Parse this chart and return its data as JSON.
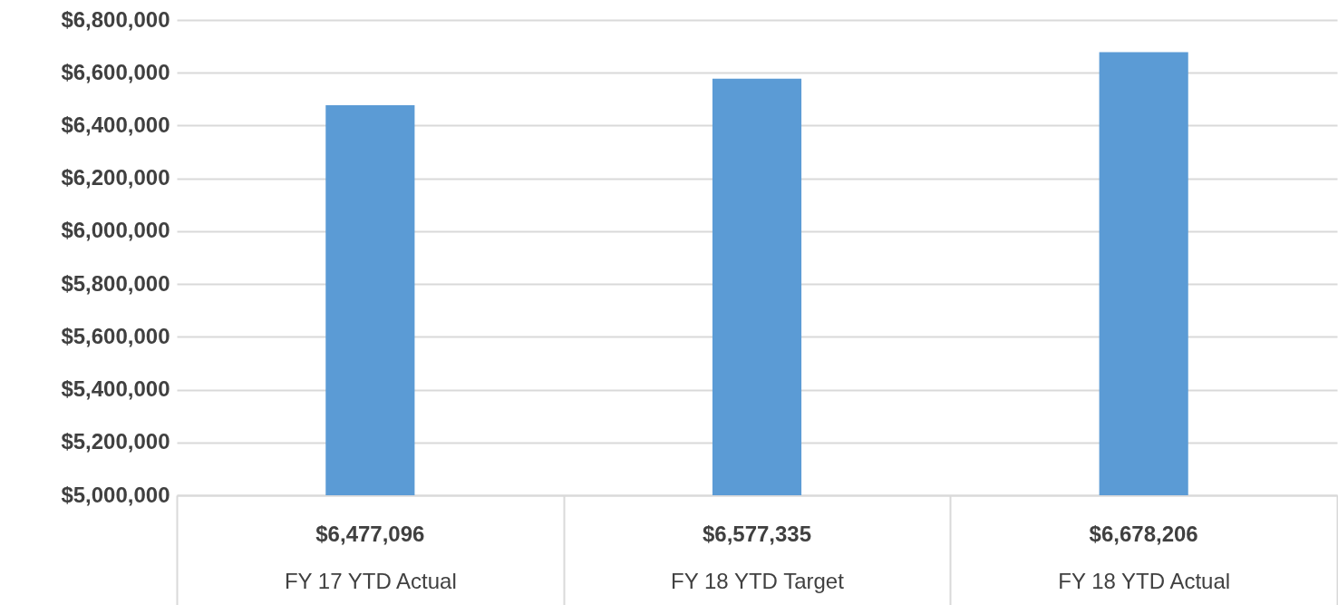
{
  "chart_data": {
    "type": "bar",
    "categories": [
      "FY 17 YTD Actual",
      "FY 18 YTD Target",
      "FY 18 YTD Actual"
    ],
    "values": [
      6477096,
      6577335,
      6678206
    ],
    "value_labels": [
      "$6,477,096",
      "$6,577,335",
      "$6,678,206"
    ],
    "color": "#5b9bd5",
    "ylim": [
      5000000,
      6800000
    ],
    "yticks": [
      {
        "value": 5000000,
        "label": "$5,000,000"
      },
      {
        "value": 5200000,
        "label": "$5,200,000"
      },
      {
        "value": 5400000,
        "label": "$5,400,000"
      },
      {
        "value": 5600000,
        "label": "$5,600,000"
      },
      {
        "value": 5800000,
        "label": "$5,800,000"
      },
      {
        "value": 6000000,
        "label": "$6,000,000"
      },
      {
        "value": 6200000,
        "label": "$6,200,000"
      },
      {
        "value": 6400000,
        "label": "$6,400,000"
      },
      {
        "value": 6600000,
        "label": "$6,600,000"
      },
      {
        "value": 6800000,
        "label": "$6,800,000"
      }
    ],
    "grid": "y"
  }
}
